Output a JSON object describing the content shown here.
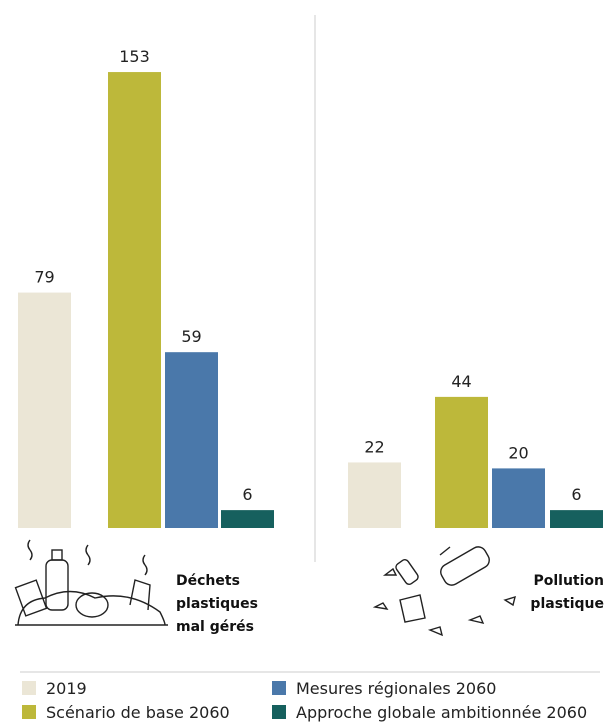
{
  "chart_data": {
    "type": "bar",
    "categories": [
      "Déchets plastiques mal gérés",
      "Pollution plastique"
    ],
    "series": [
      {
        "name": "2019",
        "color": "#ebe6d6",
        "values": [
          79,
          22
        ]
      },
      {
        "name": "Scénario de base 2060",
        "color": "#bdb83a",
        "values": [
          153,
          44
        ]
      },
      {
        "name": "Mesures régionales 2060",
        "color": "#4a78aa",
        "values": [
          59,
          20
        ]
      },
      {
        "name": "Approche globale ambitionnée 2060",
        "color": "#16605e",
        "values": [
          6,
          6
        ]
      }
    ]
  }
}
